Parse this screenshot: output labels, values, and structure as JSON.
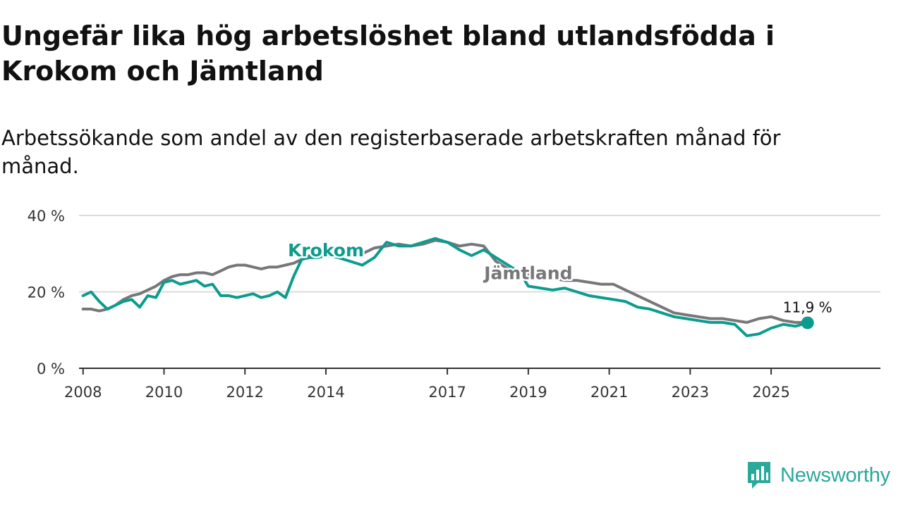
{
  "colors": {
    "krokom": "#0c9c8e",
    "jamtland": "#77777a",
    "grid": "#dcdcdc",
    "axis": "#333333",
    "brand": "#2aa89a"
  },
  "brand": {
    "name": "Newsworthy",
    "icon": "newsworthy-logo-icon"
  },
  "chart_data": {
    "type": "line",
    "title": "Ungefär lika hög arbetslöshet bland utlandsfödda i Krokom och Jämtland",
    "subtitle": "Arbetssökande som andel av den registerbaserade arbetskraften månad för månad.",
    "xlabel": "",
    "ylabel": "",
    "y_range": [
      0,
      40
    ],
    "y_ticks": [
      0,
      20,
      40
    ],
    "y_tick_labels": [
      "0 %",
      "20 %",
      "40 %"
    ],
    "x_range": [
      2007.9,
      2027.7
    ],
    "x_ticks": [
      2008,
      2010,
      2012,
      2014,
      2017,
      2019,
      2021,
      2023,
      2025
    ],
    "x_tick_labels": [
      "2008",
      "2010",
      "2012",
      "2014",
      "2017",
      "2019",
      "2021",
      "2023",
      "2025"
    ],
    "end_label": "11,9 %",
    "series": [
      {
        "name": "Krokom",
        "color": "#0c9c8e",
        "x": [
          2008.0,
          2008.2,
          2008.4,
          2008.6,
          2008.8,
          2009.0,
          2009.2,
          2009.4,
          2009.6,
          2009.8,
          2010.0,
          2010.2,
          2010.4,
          2010.6,
          2010.8,
          2011.0,
          2011.2,
          2011.4,
          2011.6,
          2011.8,
          2012.0,
          2012.2,
          2012.4,
          2012.6,
          2012.8,
          2013.0,
          2013.2,
          2013.4,
          2013.6,
          2013.8,
          2014.0,
          2014.3,
          2014.6,
          2014.9,
          2015.2,
          2015.5,
          2015.8,
          2016.1,
          2016.4,
          2016.7,
          2017.0,
          2017.3,
          2017.6,
          2017.9,
          2018.2,
          2018.5,
          2018.8,
          2019.0,
          2019.3,
          2019.6,
          2019.9,
          2020.2,
          2020.5,
          2020.8,
          2021.1,
          2021.4,
          2021.7,
          2022.0,
          2022.3,
          2022.6,
          2022.9,
          2023.2,
          2023.5,
          2023.8,
          2024.1,
          2024.4,
          2024.7,
          2025.0,
          2025.3,
          2025.6,
          2025.9
        ],
        "y": [
          19.0,
          20.0,
          17.5,
          15.5,
          16.5,
          17.5,
          18.0,
          16.0,
          19.0,
          18.5,
          22.5,
          23.0,
          22.0,
          22.5,
          23.0,
          21.5,
          22.0,
          19.0,
          19.0,
          18.5,
          19.0,
          19.5,
          18.5,
          19.0,
          20.0,
          18.5,
          24.0,
          28.5,
          29.0,
          29.0,
          29.5,
          29.0,
          28.0,
          27.0,
          29.0,
          33.0,
          32.0,
          32.0,
          33.0,
          34.0,
          33.0,
          31.0,
          29.5,
          31.0,
          29.0,
          27.0,
          25.0,
          21.5,
          21.0,
          20.5,
          21.0,
          20.0,
          19.0,
          18.5,
          18.0,
          17.5,
          16.0,
          15.5,
          14.5,
          13.5,
          13.0,
          12.5,
          12.0,
          12.0,
          11.5,
          8.5,
          9.0,
          10.5,
          11.5,
          11.0,
          11.9
        ]
      },
      {
        "name": "Jämtland",
        "color": "#77777a",
        "x": [
          2008.0,
          2008.2,
          2008.4,
          2008.6,
          2008.8,
          2009.0,
          2009.2,
          2009.4,
          2009.6,
          2009.8,
          2010.0,
          2010.2,
          2010.4,
          2010.6,
          2010.8,
          2011.0,
          2011.2,
          2011.4,
          2011.6,
          2011.8,
          2012.0,
          2012.2,
          2012.4,
          2012.6,
          2012.8,
          2013.0,
          2013.2,
          2013.4,
          2013.6,
          2013.8,
          2014.0,
          2014.3,
          2014.6,
          2014.9,
          2015.2,
          2015.5,
          2015.8,
          2016.1,
          2016.4,
          2016.7,
          2017.0,
          2017.3,
          2017.6,
          2017.9,
          2018.2,
          2018.5,
          2018.8,
          2019.0,
          2019.3,
          2019.6,
          2019.9,
          2020.2,
          2020.5,
          2020.8,
          2021.1,
          2021.4,
          2021.7,
          2022.0,
          2022.3,
          2022.6,
          2022.9,
          2023.2,
          2023.5,
          2023.8,
          2024.1,
          2024.4,
          2024.7,
          2025.0,
          2025.3,
          2025.6,
          2025.9
        ],
        "y": [
          15.5,
          15.5,
          15.0,
          15.5,
          16.5,
          18.0,
          19.0,
          19.5,
          20.5,
          21.5,
          23.0,
          24.0,
          24.5,
          24.5,
          25.0,
          25.0,
          24.5,
          25.5,
          26.5,
          27.0,
          27.0,
          26.5,
          26.0,
          26.5,
          26.5,
          27.0,
          27.5,
          28.5,
          29.5,
          30.0,
          30.5,
          30.0,
          29.5,
          30.0,
          31.5,
          32.0,
          32.5,
          32.0,
          32.5,
          33.5,
          33.0,
          32.0,
          32.5,
          32.0,
          28.0,
          26.0,
          25.0,
          24.5,
          24.0,
          23.5,
          23.0,
          23.0,
          22.5,
          22.0,
          22.0,
          20.5,
          19.0,
          17.5,
          16.0,
          14.5,
          14.0,
          13.5,
          13.0,
          13.0,
          12.5,
          12.0,
          13.0,
          13.5,
          12.5,
          12.0,
          12.0
        ]
      }
    ],
    "series_labels": [
      {
        "name": "Krokom",
        "x": 2014.0,
        "y": 31.0
      },
      {
        "name": "Jämtland",
        "x": 2019.0,
        "y": 25.0
      }
    ]
  }
}
